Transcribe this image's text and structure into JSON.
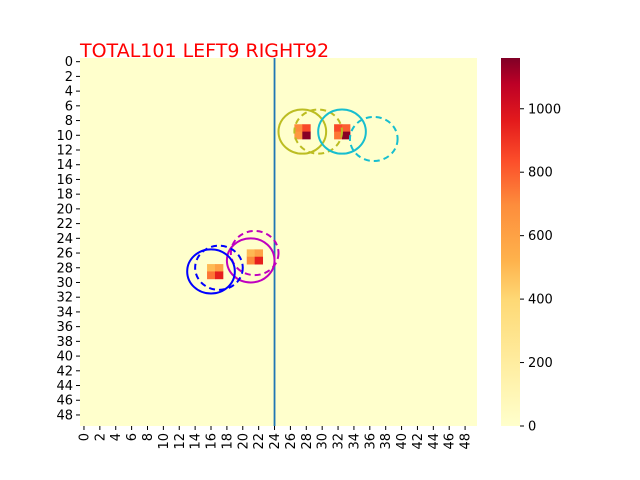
{
  "chart_data": {
    "type": "heatmap",
    "title": "TOTAL101  LEFT9 RIGHT92",
    "title_color": "#ff0000",
    "grid_size": [
      50,
      50
    ],
    "x_tick_labels": [
      "0",
      "2",
      "4",
      "6",
      "8",
      "10",
      "12",
      "14",
      "16",
      "18",
      "20",
      "22",
      "24",
      "26",
      "28",
      "30",
      "32",
      "34",
      "36",
      "38",
      "40",
      "42",
      "44",
      "46",
      "48"
    ],
    "y_tick_labels": [
      "0",
      "2",
      "4",
      "6",
      "8",
      "10",
      "12",
      "14",
      "16",
      "18",
      "20",
      "22",
      "24",
      "26",
      "28",
      "30",
      "32",
      "34",
      "36",
      "38",
      "40",
      "42",
      "44",
      "46",
      "48"
    ],
    "colormap": "YlOrRd",
    "colorbar": {
      "vmin": 0,
      "vmax": 1160,
      "tick_labels": [
        "0",
        "200",
        "400",
        "600",
        "800",
        "1000"
      ],
      "tick_values": [
        0,
        200,
        400,
        600,
        800,
        1000
      ]
    },
    "background_value": 0,
    "cells": [
      {
        "row": 9,
        "col": 27,
        "value": 700
      },
      {
        "row": 9,
        "col": 28,
        "value": 850
      },
      {
        "row": 10,
        "col": 27,
        "value": 650
      },
      {
        "row": 10,
        "col": 28,
        "value": 1150
      },
      {
        "row": 9,
        "col": 32,
        "value": 850
      },
      {
        "row": 9,
        "col": 33,
        "value": 800
      },
      {
        "row": 10,
        "col": 32,
        "value": 750
      },
      {
        "row": 10,
        "col": 33,
        "value": 1150
      },
      {
        "row": 26,
        "col": 21,
        "value": 500
      },
      {
        "row": 26,
        "col": 22,
        "value": 600
      },
      {
        "row": 27,
        "col": 21,
        "value": 700
      },
      {
        "row": 27,
        "col": 22,
        "value": 950
      },
      {
        "row": 28,
        "col": 16,
        "value": 500
      },
      {
        "row": 28,
        "col": 17,
        "value": 600
      },
      {
        "row": 29,
        "col": 16,
        "value": 750
      },
      {
        "row": 29,
        "col": 17,
        "value": 950
      }
    ],
    "vertical_line": {
      "x": 24.5,
      "color": "#1f77b4"
    },
    "circles": [
      {
        "cx": 28,
        "cy": 10,
        "r": 3,
        "color": "#bcbd22",
        "style": "solid"
      },
      {
        "cx": 30,
        "cy": 10,
        "r": 3,
        "color": "#bcbd22",
        "style": "dashed"
      },
      {
        "cx": 33,
        "cy": 10,
        "r": 3,
        "color": "#17becf",
        "style": "solid"
      },
      {
        "cx": 37,
        "cy": 11,
        "r": 3,
        "color": "#17becf",
        "style": "dashed"
      },
      {
        "cx": 22,
        "cy": 26.5,
        "r": 3,
        "color": "#bf00bf",
        "style": "dashed"
      },
      {
        "cx": 21.5,
        "cy": 27.5,
        "r": 3,
        "color": "#bf00bf",
        "style": "solid"
      },
      {
        "cx": 17.5,
        "cy": 28.5,
        "r": 3,
        "color": "#0000ff",
        "style": "dashed"
      },
      {
        "cx": 16.5,
        "cy": 29,
        "r": 3,
        "color": "#0000ff",
        "style": "solid"
      }
    ]
  }
}
